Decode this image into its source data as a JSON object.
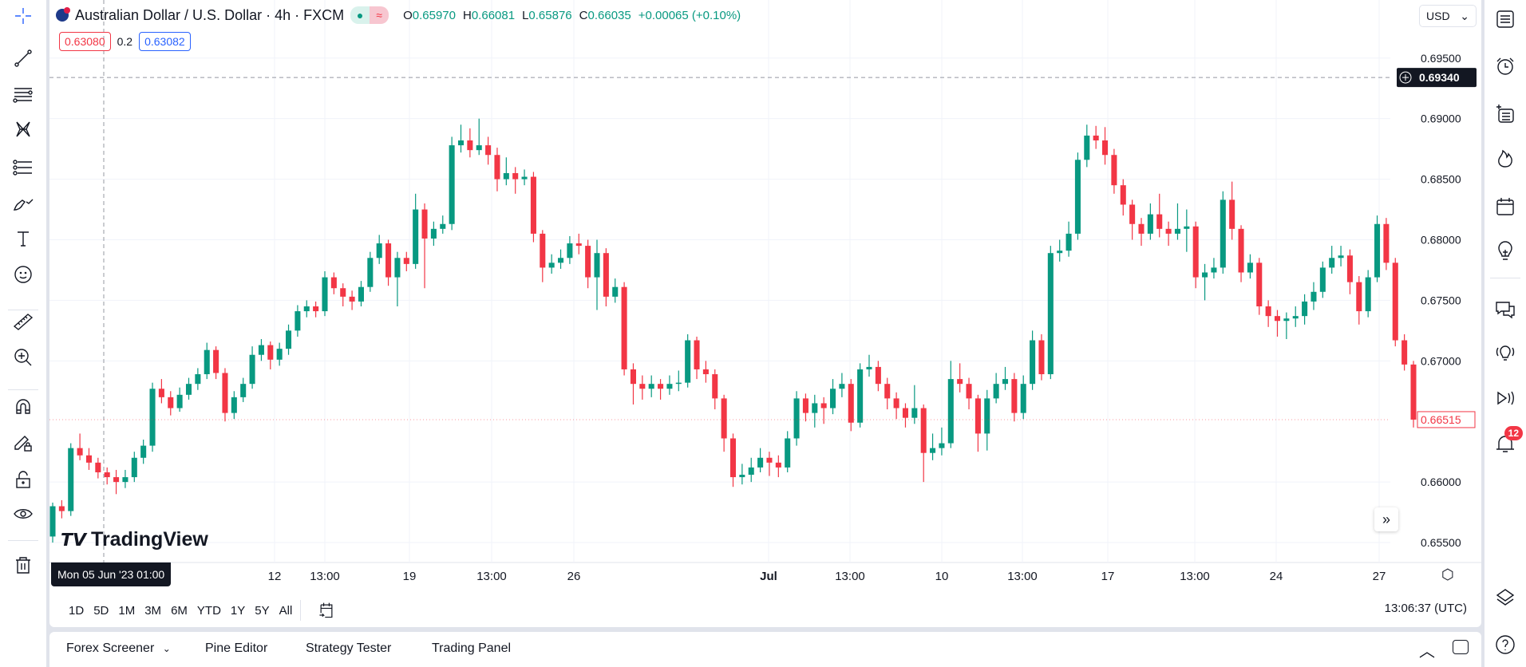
{
  "header": {
    "symbol": "Australian Dollar / U.S. Dollar · 4h · FXCM",
    "open_label": "O",
    "open": "0.65970",
    "high_label": "H",
    "high": "0.66081",
    "low_label": "L",
    "low": "0.65876",
    "close_label": "C",
    "close": "0.66035",
    "change": "+0.00065 (+0.10%)",
    "market_status": "●",
    "approx_icon": "≈"
  },
  "bid_ask": {
    "sell": "0.63080",
    "spread": "0.2",
    "buy": "0.63082"
  },
  "currency": "USD",
  "crosshair": {
    "price": "0.69340",
    "time": "Mon 05 Jun '23   01:00"
  },
  "last_price": "0.66515",
  "logo": "TradingView",
  "range_buttons": [
    "1D",
    "5D",
    "1M",
    "3M",
    "6M",
    "YTD",
    "1Y",
    "5Y",
    "All"
  ],
  "clock": "13:06:37 (UTC)",
  "bottom_tabs": [
    "Forex Screener",
    "Pine Editor",
    "Strategy Tester",
    "Trading Panel"
  ],
  "alerts_badge": "12",
  "colors": {
    "up": "#089981",
    "down": "#f23645",
    "accent": "#2962ff"
  },
  "chart_data": {
    "type": "candlestick",
    "ylim": [
      0.6525,
      0.6965
    ],
    "y_ticks": [
      "0.69500",
      "0.69000",
      "0.68500",
      "0.68000",
      "0.67500",
      "0.67000",
      "0.66000",
      "0.65500"
    ],
    "x_ticks": [
      "12",
      "13:00",
      "19",
      "13:00",
      "26",
      "Jul",
      "13:00",
      "10",
      "13:00",
      "17",
      "13:00",
      "24",
      "27"
    ],
    "ohlc": [
      [
        0.6555,
        0.6583,
        0.655,
        0.658
      ],
      [
        0.658,
        0.6585,
        0.657,
        0.6576
      ],
      [
        0.6576,
        0.6632,
        0.6572,
        0.6628
      ],
      [
        0.6628,
        0.664,
        0.6618,
        0.6622
      ],
      [
        0.6622,
        0.6628,
        0.661,
        0.6616
      ],
      [
        0.6616,
        0.662,
        0.6603,
        0.6608
      ],
      [
        0.6608,
        0.6612,
        0.6598,
        0.6604
      ],
      [
        0.6604,
        0.661,
        0.659,
        0.66
      ],
      [
        0.66,
        0.661,
        0.6595,
        0.6604
      ],
      [
        0.6604,
        0.6625,
        0.66,
        0.662
      ],
      [
        0.662,
        0.6635,
        0.6615,
        0.663
      ],
      [
        0.663,
        0.6682,
        0.6625,
        0.6677
      ],
      [
        0.6677,
        0.6685,
        0.6665,
        0.667
      ],
      [
        0.667,
        0.6675,
        0.6655,
        0.6661
      ],
      [
        0.6661,
        0.6678,
        0.6658,
        0.6672
      ],
      [
        0.6672,
        0.6686,
        0.6668,
        0.6681
      ],
      [
        0.6681,
        0.6694,
        0.6676,
        0.6689
      ],
      [
        0.6689,
        0.6715,
        0.6685,
        0.6709
      ],
      [
        0.6709,
        0.6712,
        0.6685,
        0.669
      ],
      [
        0.669,
        0.6694,
        0.665,
        0.6657
      ],
      [
        0.6657,
        0.6675,
        0.6652,
        0.667
      ],
      [
        0.667,
        0.6686,
        0.6666,
        0.6681
      ],
      [
        0.6681,
        0.6712,
        0.6677,
        0.6705
      ],
      [
        0.6705,
        0.6718,
        0.67,
        0.6713
      ],
      [
        0.6713,
        0.6716,
        0.6693,
        0.6701
      ],
      [
        0.6701,
        0.6715,
        0.6696,
        0.671
      ],
      [
        0.671,
        0.673,
        0.6705,
        0.6725
      ],
      [
        0.6725,
        0.6746,
        0.672,
        0.6741
      ],
      [
        0.6741,
        0.675,
        0.6736,
        0.6745
      ],
      [
        0.6745,
        0.6749,
        0.6736,
        0.6741
      ],
      [
        0.6741,
        0.6774,
        0.6737,
        0.6769
      ],
      [
        0.6769,
        0.6773,
        0.6755,
        0.676
      ],
      [
        0.676,
        0.6764,
        0.6745,
        0.6753
      ],
      [
        0.6753,
        0.6758,
        0.6742,
        0.6749
      ],
      [
        0.6749,
        0.6766,
        0.6745,
        0.6761
      ],
      [
        0.6761,
        0.679,
        0.6757,
        0.6785
      ],
      [
        0.6785,
        0.6804,
        0.678,
        0.6797
      ],
      [
        0.6797,
        0.68,
        0.6762,
        0.6769
      ],
      [
        0.6769,
        0.679,
        0.6745,
        0.6785
      ],
      [
        0.6785,
        0.679,
        0.6774,
        0.678
      ],
      [
        0.678,
        0.6838,
        0.6776,
        0.6825
      ],
      [
        0.6825,
        0.683,
        0.676,
        0.6801
      ],
      [
        0.6801,
        0.6815,
        0.6795,
        0.6809
      ],
      [
        0.6809,
        0.682,
        0.6805,
        0.6813
      ],
      [
        0.6813,
        0.6885,
        0.6808,
        0.6878
      ],
      [
        0.6878,
        0.6895,
        0.6872,
        0.6882
      ],
      [
        0.6882,
        0.6892,
        0.6868,
        0.6874
      ],
      [
        0.6874,
        0.69,
        0.687,
        0.6878
      ],
      [
        0.6878,
        0.6885,
        0.6862,
        0.687
      ],
      [
        0.687,
        0.6876,
        0.684,
        0.685
      ],
      [
        0.685,
        0.6868,
        0.6845,
        0.6855
      ],
      [
        0.6855,
        0.686,
        0.6838,
        0.685
      ],
      [
        0.685,
        0.6858,
        0.6845,
        0.6852
      ],
      [
        0.6852,
        0.6856,
        0.6798,
        0.6805
      ],
      [
        0.6805,
        0.6808,
        0.6765,
        0.6777
      ],
      [
        0.6777,
        0.6788,
        0.6772,
        0.6781
      ],
      [
        0.6781,
        0.6792,
        0.6776,
        0.6785
      ],
      [
        0.6785,
        0.6803,
        0.678,
        0.6797
      ],
      [
        0.6797,
        0.6805,
        0.6788,
        0.6795
      ],
      [
        0.6795,
        0.68,
        0.676,
        0.6769
      ],
      [
        0.6769,
        0.68,
        0.6742,
        0.6789
      ],
      [
        0.6789,
        0.6793,
        0.6745,
        0.6753
      ],
      [
        0.6753,
        0.6768,
        0.6748,
        0.6761
      ],
      [
        0.6761,
        0.6765,
        0.6688,
        0.6693
      ],
      [
        0.6693,
        0.6698,
        0.6664,
        0.6681
      ],
      [
        0.6681,
        0.6688,
        0.6668,
        0.6677
      ],
      [
        0.6677,
        0.6688,
        0.667,
        0.6681
      ],
      [
        0.6681,
        0.6685,
        0.6668,
        0.6677
      ],
      [
        0.6677,
        0.6688,
        0.6672,
        0.6681
      ],
      [
        0.6681,
        0.6692,
        0.6675,
        0.6682
      ],
      [
        0.6682,
        0.6722,
        0.6678,
        0.6717
      ],
      [
        0.6717,
        0.672,
        0.6685,
        0.6693
      ],
      [
        0.6693,
        0.67,
        0.6682,
        0.6689
      ],
      [
        0.6689,
        0.6693,
        0.666,
        0.6669
      ],
      [
        0.6669,
        0.6672,
        0.6625,
        0.6636
      ],
      [
        0.6636,
        0.664,
        0.6596,
        0.6604
      ],
      [
        0.6604,
        0.6615,
        0.6598,
        0.6606
      ],
      [
        0.6606,
        0.662,
        0.66,
        0.6612
      ],
      [
        0.6612,
        0.6628,
        0.6608,
        0.662
      ],
      [
        0.662,
        0.6625,
        0.6605,
        0.6616
      ],
      [
        0.6616,
        0.6622,
        0.6604,
        0.6612
      ],
      [
        0.6612,
        0.6642,
        0.6608,
        0.6636
      ],
      [
        0.6636,
        0.6675,
        0.663,
        0.6669
      ],
      [
        0.6669,
        0.6673,
        0.665,
        0.6657
      ],
      [
        0.6657,
        0.6672,
        0.6645,
        0.6665
      ],
      [
        0.6665,
        0.667,
        0.6648,
        0.6661
      ],
      [
        0.6661,
        0.6685,
        0.6656,
        0.6677
      ],
      [
        0.6677,
        0.669,
        0.667,
        0.6681
      ],
      [
        0.6681,
        0.6685,
        0.6642,
        0.6649
      ],
      [
        0.6649,
        0.6698,
        0.6645,
        0.6693
      ],
      [
        0.6693,
        0.6705,
        0.6687,
        0.6695
      ],
      [
        0.6695,
        0.67,
        0.6675,
        0.6681
      ],
      [
        0.6681,
        0.6686,
        0.666,
        0.6669
      ],
      [
        0.6669,
        0.6674,
        0.6652,
        0.6661
      ],
      [
        0.6661,
        0.6665,
        0.6645,
        0.6653
      ],
      [
        0.6653,
        0.668,
        0.6648,
        0.6661
      ],
      [
        0.6661,
        0.6664,
        0.66,
        0.6624
      ],
      [
        0.6624,
        0.664,
        0.6618,
        0.6628
      ],
      [
        0.6628,
        0.6645,
        0.6622,
        0.6632
      ],
      [
        0.6632,
        0.67,
        0.6628,
        0.6685
      ],
      [
        0.6685,
        0.6698,
        0.6674,
        0.6681
      ],
      [
        0.6681,
        0.6686,
        0.666,
        0.6669
      ],
      [
        0.6669,
        0.6672,
        0.6625,
        0.664
      ],
      [
        0.664,
        0.6676,
        0.6626,
        0.6669
      ],
      [
        0.6669,
        0.669,
        0.6665,
        0.6681
      ],
      [
        0.6681,
        0.6695,
        0.6676,
        0.6685
      ],
      [
        0.6685,
        0.669,
        0.665,
        0.6657
      ],
      [
        0.6657,
        0.6688,
        0.6652,
        0.6681
      ],
      [
        0.6681,
        0.6725,
        0.6676,
        0.6717
      ],
      [
        0.6717,
        0.6722,
        0.6684,
        0.6689
      ],
      [
        0.6689,
        0.6795,
        0.6685,
        0.6789
      ],
      [
        0.6789,
        0.68,
        0.6782,
        0.6791
      ],
      [
        0.6791,
        0.6815,
        0.6786,
        0.6805
      ],
      [
        0.6805,
        0.6872,
        0.68,
        0.6866
      ],
      [
        0.6866,
        0.6895,
        0.686,
        0.6886
      ],
      [
        0.6886,
        0.6894,
        0.6875,
        0.6882
      ],
      [
        0.6882,
        0.6893,
        0.6862,
        0.687
      ],
      [
        0.687,
        0.6875,
        0.6838,
        0.6845
      ],
      [
        0.6845,
        0.685,
        0.682,
        0.6829
      ],
      [
        0.6829,
        0.6833,
        0.68,
        0.6813
      ],
      [
        0.6813,
        0.6818,
        0.6795,
        0.6805
      ],
      [
        0.6805,
        0.683,
        0.68,
        0.6821
      ],
      [
        0.6821,
        0.6838,
        0.6802,
        0.6809
      ],
      [
        0.6809,
        0.6815,
        0.6795,
        0.6805
      ],
      [
        0.6805,
        0.683,
        0.68,
        0.6809
      ],
      [
        0.6809,
        0.6825,
        0.679,
        0.6811
      ],
      [
        0.6811,
        0.6815,
        0.676,
        0.6769
      ],
      [
        0.6769,
        0.678,
        0.675,
        0.6773
      ],
      [
        0.6773,
        0.6785,
        0.6768,
        0.6777
      ],
      [
        0.6777,
        0.684,
        0.6772,
        0.6833
      ],
      [
        0.6833,
        0.6848,
        0.68,
        0.6809
      ],
      [
        0.6809,
        0.6812,
        0.6765,
        0.6773
      ],
      [
        0.6773,
        0.6788,
        0.6768,
        0.6781
      ],
      [
        0.6781,
        0.6785,
        0.6738,
        0.6745
      ],
      [
        0.6745,
        0.675,
        0.6728,
        0.6737
      ],
      [
        0.6737,
        0.6742,
        0.672,
        0.6733
      ],
      [
        0.6733,
        0.674,
        0.6718,
        0.6735
      ],
      [
        0.6735,
        0.6745,
        0.6728,
        0.6737
      ],
      [
        0.6737,
        0.6755,
        0.673,
        0.6749
      ],
      [
        0.6749,
        0.6765,
        0.6742,
        0.6757
      ],
      [
        0.6757,
        0.6782,
        0.6752,
        0.6777
      ],
      [
        0.6777,
        0.6795,
        0.6772,
        0.6785
      ],
      [
        0.6785,
        0.6795,
        0.6778,
        0.6787
      ],
      [
        0.6787,
        0.6792,
        0.6755,
        0.6765
      ],
      [
        0.6765,
        0.677,
        0.673,
        0.6741
      ],
      [
        0.6741,
        0.6775,
        0.6736,
        0.6769
      ],
      [
        0.6769,
        0.682,
        0.6765,
        0.6813
      ],
      [
        0.6813,
        0.6818,
        0.6775,
        0.6781
      ],
      [
        0.6781,
        0.6785,
        0.6712,
        0.6717
      ],
      [
        0.6717,
        0.6722,
        0.6692,
        0.6697
      ],
      [
        0.6697,
        0.67,
        0.6645,
        0.66515
      ]
    ]
  }
}
